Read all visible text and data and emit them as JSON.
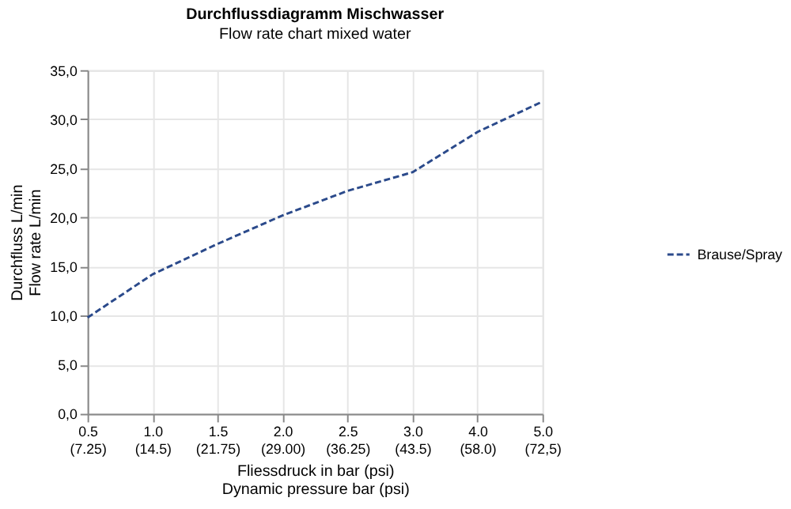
{
  "chart_data": {
    "type": "line",
    "title": "Durchflussdiagramm Mischwasser",
    "subtitle": "Flow rate chart mixed water",
    "xlabel": "Fliessdruck in bar (psi)\nDynamic pressure bar (psi)",
    "ylabel": "Durchfluss L/min\nFlow rate L/min",
    "categories": [
      "0.5\n(7.25)",
      "1.0\n(14.5)",
      "1.5\n(21.75)",
      "2.0\n(29.00)",
      "2.5\n(36.25)",
      "3.0\n(43.5)",
      "4.0\n(58.0)",
      "5.0\n(72,5)"
    ],
    "series": [
      {
        "name": "Brause/Spray",
        "color": "#2b4a8b",
        "values": [
          9.8,
          14.2,
          17.3,
          20.2,
          22.7,
          24.6,
          28.7,
          31.8
        ]
      }
    ],
    "ylim": [
      0,
      35
    ],
    "yticks": [
      {
        "value": 0,
        "label": "0,0"
      },
      {
        "value": 5,
        "label": "5,0"
      },
      {
        "value": 10,
        "label": "10,0"
      },
      {
        "value": 15,
        "label": "15,0"
      },
      {
        "value": 20,
        "label": "20,0"
      },
      {
        "value": 25,
        "label": "25,0"
      },
      {
        "value": 30,
        "label": "30,0"
      },
      {
        "value": 35,
        "label": "35,0"
      }
    ],
    "grid": true,
    "legend": "right",
    "marker": "none",
    "line_style": "dashed"
  }
}
